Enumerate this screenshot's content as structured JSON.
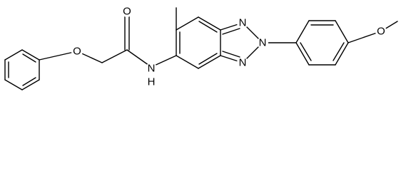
{
  "atoms": [
    {
      "label": "O"
    },
    {
      "label": "O"
    },
    {
      "label": "N"
    },
    {
      "label": "H"
    },
    {
      "label": "N"
    },
    {
      "label": "N"
    },
    {
      "label": "N"
    },
    {
      "label": "O"
    }
  ]
}
